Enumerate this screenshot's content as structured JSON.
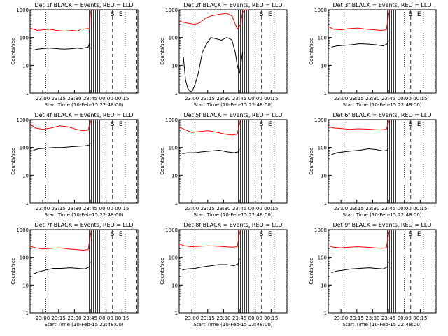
{
  "chart_data": [
    {
      "type": "line",
      "title": "Det 1f BLACK = Events, RED = LLD",
      "xlabel": "Start Time (10-Feb-15 22:48:00)",
      "ylabel": "Counts/sec",
      "yscale": "log",
      "ylim": [
        1,
        1000
      ],
      "xlim_minutes_after_start": [
        0,
        102
      ],
      "xtick_labels": [
        "23:00",
        "23:15",
        "23:30",
        "23:45",
        "00:00",
        "00:15"
      ],
      "ytick_labels": [
        "1",
        "10",
        "100",
        "1000"
      ],
      "annotations": [
        "S",
        "E"
      ],
      "series": [
        {
          "color": "#ff0000",
          "x": [
            0,
            3,
            7,
            12,
            18,
            25,
            32,
            40,
            45,
            48,
            55,
            56,
            57,
            58
          ],
          "y": [
            220,
            200,
            180,
            190,
            200,
            180,
            170,
            180,
            170,
            200,
            210,
            200,
            700,
            1000
          ]
        },
        {
          "color": "#000000",
          "x": [
            3,
            7,
            12,
            18,
            25,
            32,
            40,
            45,
            48,
            55,
            56,
            57
          ],
          "y": [
            35,
            38,
            40,
            42,
            40,
            38,
            40,
            42,
            40,
            45,
            60,
            40
          ]
        }
      ]
    },
    {
      "type": "line",
      "title": "Det 2f BLACK = Events, RED = LLD",
      "xlabel": "Start Time (10-Feb-15 22:48:00)",
      "ylabel": "Counts/sec",
      "yscale": "log",
      "ylim": [
        1,
        1000
      ],
      "xlim_minutes_after_start": [
        0,
        102
      ],
      "xtick_labels": [
        "23:00",
        "23:15",
        "23:30",
        "23:45",
        "00:00",
        "00:15"
      ],
      "ytick_labels": [
        "1",
        "10",
        "100",
        "1000"
      ],
      "annotations": [
        "S",
        "E"
      ],
      "series": [
        {
          "color": "#ff0000",
          "x": [
            0,
            5,
            10,
            15,
            20,
            25,
            30,
            35,
            40,
            45,
            50,
            55,
            58,
            60,
            62,
            65
          ],
          "y": [
            400,
            350,
            320,
            300,
            350,
            500,
            600,
            650,
            700,
            750,
            600,
            200,
            300,
            800,
            1000,
            1000
          ]
        },
        {
          "color": "#000000",
          "x": [
            4,
            6,
            8,
            10,
            12,
            15,
            18,
            22,
            26,
            30,
            35,
            40,
            45,
            48,
            50,
            53,
            55,
            57,
            60
          ],
          "y": [
            20,
            3,
            1.5,
            1.2,
            1.1,
            2,
            5,
            30,
            60,
            100,
            90,
            80,
            100,
            90,
            80,
            30,
            10,
            5,
            30
          ]
        }
      ]
    },
    {
      "type": "line",
      "title": "Det 3f BLACK = Events, RED = LLD",
      "xlabel": "Start Time (10-Feb-15 22:48:00)",
      "ylabel": "Counts/sec",
      "yscale": "log",
      "ylim": [
        1,
        1000
      ],
      "xlim_minutes_after_start": [
        0,
        102
      ],
      "xtick_labels": [
        "23:00",
        "23:15",
        "23:30",
        "23:45",
        "00:00",
        "00:15"
      ],
      "ytick_labels": [
        "1",
        "10",
        "100",
        "1000"
      ],
      "annotations": [
        "S",
        "E"
      ],
      "series": [
        {
          "color": "#ff0000",
          "x": [
            0,
            5,
            12,
            20,
            28,
            36,
            44,
            50,
            55,
            57,
            58
          ],
          "y": [
            250,
            200,
            190,
            210,
            220,
            200,
            190,
            180,
            190,
            600,
            1000
          ]
        },
        {
          "color": "#000000",
          "x": [
            3,
            8,
            15,
            22,
            30,
            38,
            45,
            52,
            56,
            57
          ],
          "y": [
            45,
            50,
            52,
            55,
            60,
            58,
            55,
            50,
            60,
            80
          ]
        }
      ]
    },
    {
      "type": "line",
      "title": "Det 4f BLACK = Events, RED = LLD",
      "xlabel": "Start Time (10-Feb-15 22:48:00)",
      "ylabel": "Counts/sec",
      "yscale": "log",
      "ylim": [
        1,
        1000
      ],
      "xlim_minutes_after_start": [
        0,
        102
      ],
      "xtick_labels": [
        "23:00",
        "23:15",
        "23:30",
        "23:45",
        "00:00",
        "00:15"
      ],
      "ytick_labels": [
        "1",
        "10",
        "100",
        "1000"
      ],
      "annotations": [
        "S",
        "E"
      ],
      "series": [
        {
          "color": "#ff0000",
          "x": [
            0,
            5,
            12,
            20,
            28,
            36,
            44,
            50,
            55,
            57,
            58
          ],
          "y": [
            700,
            500,
            450,
            500,
            600,
            550,
            450,
            400,
            420,
            800,
            1000
          ]
        },
        {
          "color": "#000000",
          "x": [
            3,
            8,
            15,
            22,
            30,
            38,
            45,
            52,
            56,
            57
          ],
          "y": [
            80,
            90,
            95,
            100,
            100,
            105,
            110,
            115,
            120,
            150
          ]
        }
      ]
    },
    {
      "type": "line",
      "title": "Det 5f BLACK = Events, RED = LLD",
      "xlabel": "Start Time (10-Feb-15 22:48:00)",
      "ylabel": "Counts/sec",
      "yscale": "log",
      "ylim": [
        1,
        1000
      ],
      "xlim_minutes_after_start": [
        0,
        102
      ],
      "xtick_labels": [
        "23:00",
        "23:15",
        "23:30",
        "23:45",
        "00:00",
        "00:15"
      ],
      "ytick_labels": [
        "1",
        "10",
        "100",
        "1000"
      ],
      "annotations": [
        "S",
        "E"
      ],
      "series": [
        {
          "color": "#ff0000",
          "x": [
            0,
            5,
            12,
            20,
            28,
            36,
            44,
            50,
            55,
            57,
            58
          ],
          "y": [
            550,
            450,
            350,
            380,
            400,
            350,
            300,
            280,
            300,
            700,
            1000
          ]
        },
        {
          "color": "#000000",
          "x": [
            3,
            8,
            15,
            22,
            30,
            38,
            45,
            52,
            56,
            57
          ],
          "y": [
            60,
            65,
            65,
            70,
            75,
            80,
            70,
            65,
            70,
            90
          ]
        }
      ]
    },
    {
      "type": "line",
      "title": "Det 6f BLACK = Events, RED = LLD",
      "xlabel": "Start Time (10-Feb-15 22:48:00)",
      "ylabel": "Counts/sec",
      "yscale": "log",
      "ylim": [
        1,
        1000
      ],
      "xlim_minutes_after_start": [
        0,
        102
      ],
      "xtick_labels": [
        "23:00",
        "23:15",
        "23:30",
        "23:45",
        "00:00",
        "00:15"
      ],
      "ytick_labels": [
        "1",
        "10",
        "100",
        "1000"
      ],
      "annotations": [
        "S",
        "E"
      ],
      "series": [
        {
          "color": "#ff0000",
          "x": [
            0,
            5,
            12,
            20,
            28,
            36,
            44,
            50,
            55,
            57,
            58
          ],
          "y": [
            550,
            500,
            480,
            450,
            470,
            460,
            440,
            430,
            450,
            800,
            1000
          ]
        },
        {
          "color": "#000000",
          "x": [
            3,
            8,
            15,
            22,
            30,
            38,
            45,
            52,
            56,
            57
          ],
          "y": [
            55,
            65,
            70,
            75,
            80,
            90,
            85,
            75,
            80,
            100
          ]
        }
      ]
    },
    {
      "type": "line",
      "title": "Det 7f BLACK = Events, RED = LLD",
      "xlabel": "Start Time (10-Feb-15 22:48:00)",
      "ylabel": "Counts/sec",
      "yscale": "log",
      "ylim": [
        1,
        1000
      ],
      "xlim_minutes_after_start": [
        0,
        102
      ],
      "xtick_labels": [
        "23:00",
        "23:15",
        "23:30",
        "23:45",
        "00:00",
        "00:15"
      ],
      "ytick_labels": [
        "1",
        "10",
        "100",
        "1000"
      ],
      "annotations": [
        "S",
        "E"
      ],
      "series": [
        {
          "color": "#ff0000",
          "x": [
            0,
            5,
            12,
            20,
            28,
            36,
            44,
            50,
            55,
            57,
            58
          ],
          "y": [
            250,
            220,
            200,
            210,
            220,
            200,
            190,
            180,
            190,
            600,
            1000
          ]
        },
        {
          "color": "#000000",
          "x": [
            3,
            8,
            15,
            22,
            30,
            38,
            45,
            52,
            56,
            57
          ],
          "y": [
            25,
            30,
            35,
            40,
            40,
            42,
            40,
            38,
            45,
            70
          ]
        }
      ]
    },
    {
      "type": "line",
      "title": "Det 8f BLACK = Events, RED = LLD",
      "xlabel": "Start Time (10-Feb-15 22:48:00)",
      "ylabel": "Counts/sec",
      "yscale": "log",
      "ylim": [
        1,
        1000
      ],
      "xlim_minutes_after_start": [
        0,
        102
      ],
      "xtick_labels": [
        "23:00",
        "23:15",
        "23:30",
        "23:45",
        "00:00",
        "00:15"
      ],
      "ytick_labels": [
        "1",
        "10",
        "100",
        "1000"
      ],
      "annotations": [
        "S",
        "E"
      ],
      "series": [
        {
          "color": "#ff0000",
          "x": [
            0,
            5,
            12,
            20,
            28,
            36,
            44,
            50,
            55,
            57,
            58
          ],
          "y": [
            300,
            260,
            240,
            250,
            260,
            250,
            240,
            230,
            240,
            700,
            1000
          ]
        },
        {
          "color": "#000000",
          "x": [
            3,
            8,
            15,
            22,
            30,
            38,
            45,
            52,
            56,
            57
          ],
          "y": [
            35,
            38,
            40,
            45,
            50,
            55,
            55,
            50,
            60,
            90
          ]
        }
      ]
    },
    {
      "type": "line",
      "title": "Det 9f BLACK = Events, RED = LLD",
      "xlabel": "Start Time (10-Feb-15 22:48:00)",
      "ylabel": "Counts/sec",
      "yscale": "log",
      "ylim": [
        1,
        1000
      ],
      "xlim_minutes_after_start": [
        0,
        102
      ],
      "xtick_labels": [
        "23:00",
        "23:15",
        "23:30",
        "23:45",
        "00:00",
        "00:15"
      ],
      "ytick_labels": [
        "1",
        "10",
        "100",
        "1000"
      ],
      "annotations": [
        "S",
        "E"
      ],
      "series": [
        {
          "color": "#ff0000",
          "x": [
            0,
            5,
            12,
            20,
            28,
            36,
            44,
            50,
            55,
            57,
            58
          ],
          "y": [
            260,
            230,
            220,
            230,
            240,
            230,
            220,
            210,
            220,
            650,
            1000
          ]
        },
        {
          "color": "#000000",
          "x": [
            3,
            8,
            15,
            22,
            30,
            38,
            45,
            52,
            56,
            57
          ],
          "y": [
            28,
            32,
            35,
            38,
            40,
            42,
            40,
            38,
            45,
            70
          ]
        }
      ]
    }
  ]
}
